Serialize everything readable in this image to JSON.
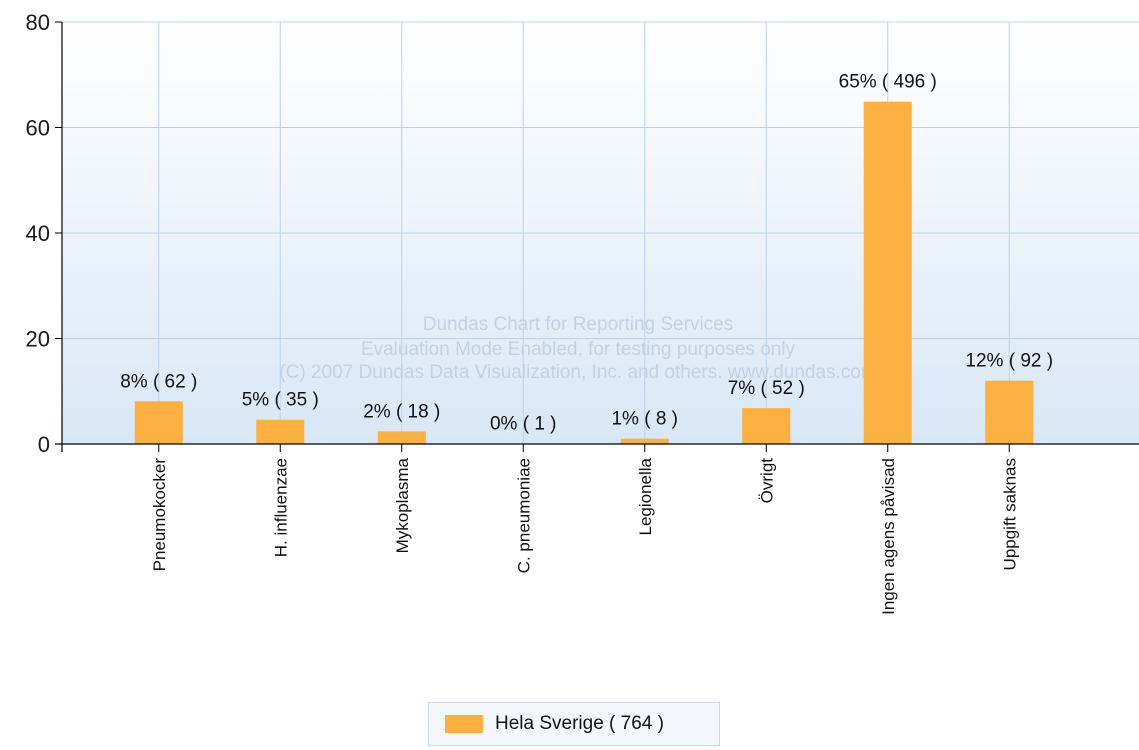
{
  "chart_data": {
    "type": "bar",
    "categories": [
      "Pneumokocker",
      "H. influenzae",
      "Mykoplasma",
      "C. pneumoniae",
      "Legionella",
      "Övrigt",
      "Ingen agens påvisad",
      "Uppgift saknas"
    ],
    "series": [
      {
        "name": "Hela Sverige  ( 764 )",
        "values": [
          8,
          5,
          2,
          0,
          1,
          7,
          65,
          12
        ],
        "labels": [
          "8% ( 62 )",
          "5% ( 35 )",
          "2% ( 18 )",
          "0% ( 1 )",
          "1% ( 8 )",
          "7% ( 52 )",
          "65% ( 496 )",
          "12% ( 92 )"
        ]
      }
    ],
    "bar_values_exact": [
      8.1,
      4.6,
      2.4,
      0.1,
      1.0,
      6.8,
      64.9,
      12.0
    ],
    "ylim": [
      0,
      80
    ],
    "yticks": [
      0,
      20,
      40,
      60,
      80
    ],
    "xlabel": "",
    "ylabel": "",
    "title": "",
    "grid": true,
    "legend_position": "bottom-center",
    "watermark": [
      "Dundas Chart for Reporting Services",
      "Evaluation Mode Enabled, for testing purposes only",
      "(C) 2007 Dundas Data Visualization, Inc. and others. www.dundas.com"
    ],
    "colors": {
      "bar": "#fbb040",
      "grid": "#b9d3ec",
      "plot_top": "#ffffff",
      "plot_bottom": "#d8e7f6",
      "axis": "#000000"
    }
  }
}
